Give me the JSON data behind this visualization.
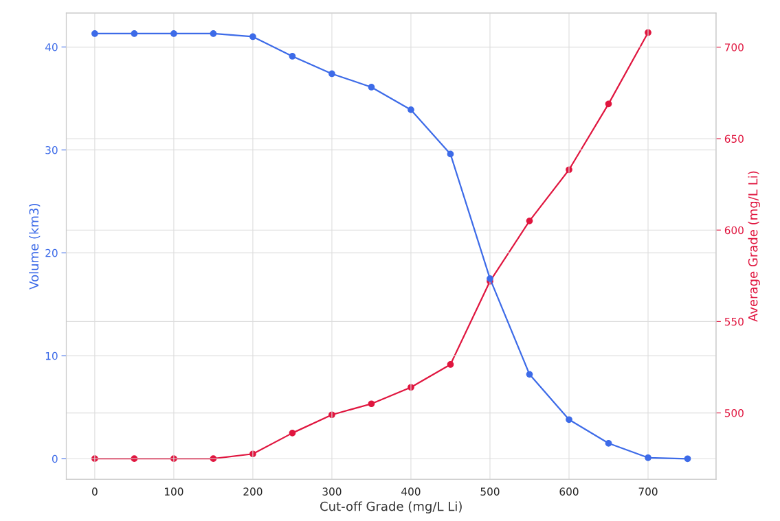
{
  "chart_data": {
    "type": "line",
    "xlabel": "Cut-off Grade (mg/L Li)",
    "ylabel": "Volume (km3)",
    "y2label": "Average Grade (mg/L Li)",
    "x": [
      0,
      50,
      100,
      150,
      200,
      250,
      300,
      350,
      400,
      450,
      500,
      550,
      600,
      650,
      700,
      750
    ],
    "series": [
      {
        "color": "#3d6be8",
        "values": [
          41.3,
          41.3,
          41.3,
          41.3,
          41.0,
          39.1,
          37.4,
          36.1,
          33.9,
          29.6,
          17.5,
          8.2,
          3.8,
          1.5,
          0.1,
          0.0
        ]
      },
      {
        "color": "#e0163f",
        "axis": "y2",
        "values": [
          475,
          475,
          475,
          475,
          477.6,
          489,
          499,
          505,
          514,
          526.5,
          572,
          605,
          633,
          669,
          708,
          null
        ]
      }
    ],
    "xlim": [
      -36,
      786
    ],
    "xticks": [
      0,
      100,
      200,
      300,
      400,
      500,
      600,
      700
    ],
    "ylim": [
      -2,
      43.3
    ],
    "yticks": [
      0,
      10,
      20,
      30,
      40
    ],
    "y2lim": [
      463.7,
      718.7
    ],
    "y2ticks": [
      500,
      550,
      600,
      650,
      700
    ],
    "grid": true,
    "marker": "circle",
    "line_style": "solid"
  }
}
